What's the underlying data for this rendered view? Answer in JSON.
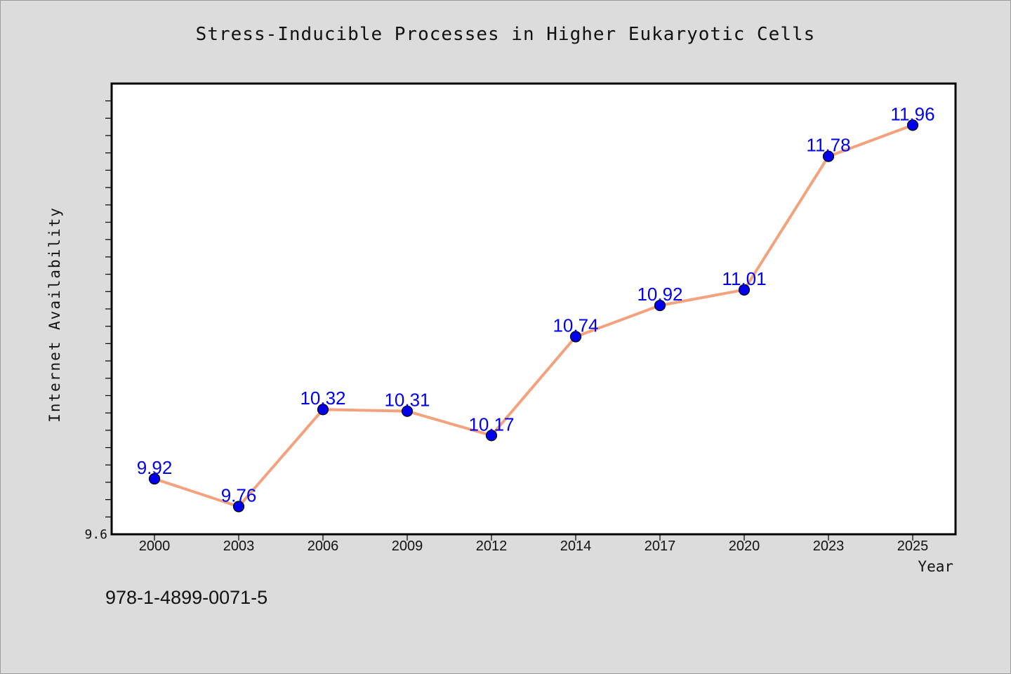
{
  "colors": {
    "background": "#dcdcdc",
    "plot_background": "#ffffff",
    "line": "#f4a27e",
    "marker": "#0000ee",
    "data_label": "#0000ee",
    "axis": "#000000"
  },
  "footer_text": "978-1-4899-0071-5",
  "chart_data": {
    "type": "line",
    "title": "Stress-Inducible Processes in Higher Eukaryotic Cells",
    "xlabel": "Year",
    "ylabel": "Internet Availability",
    "categories": [
      "2000",
      "2003",
      "2006",
      "2009",
      "2012",
      "2014",
      "2017",
      "2020",
      "2023",
      "2025"
    ],
    "series": [
      {
        "values": [
          9.92,
          9.76,
          10.32,
          10.31,
          10.17,
          10.74,
          10.92,
          11.01,
          11.78,
          11.96
        ]
      }
    ],
    "data_labels": [
      "9.92",
      "9.76",
      "10.32",
      "10.31",
      "10.17",
      "10.74",
      "10.92",
      "11.01",
      "11.78",
      "11.96"
    ],
    "ylim": [
      9.6,
      12.2
    ],
    "y_tick_labels": [
      "9.6"
    ],
    "grid": false,
    "legend": "none"
  }
}
